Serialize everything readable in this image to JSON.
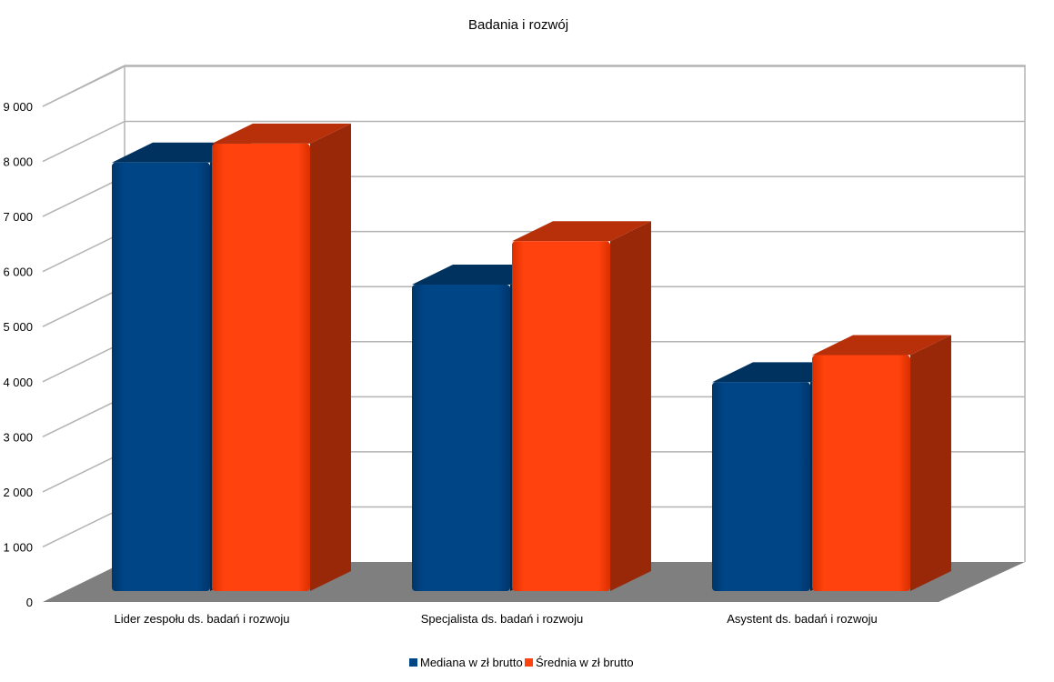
{
  "chart_data": {
    "type": "bar",
    "title": "Badania i rozwój",
    "categories": [
      "Lider zespołu ds. badań i rozwoju",
      "Specjalista ds. badań i rozwoju",
      "Asystent ds. badań i rozwoju"
    ],
    "series": [
      {
        "name": "Mediana w zł brutto",
        "values": [
          7900,
          5650,
          3850
        ],
        "color": "#004586"
      },
      {
        "name": "Średnia w zł brutto",
        "values": [
          8250,
          6450,
          4350
        ],
        "color": "#ff420e"
      }
    ],
    "yticks": [
      "0",
      "1 000",
      "2 000",
      "3 000",
      "4 000",
      "5 000",
      "6 000",
      "7 000",
      "8 000",
      "9 000"
    ],
    "ylim": [
      0,
      9000
    ],
    "grid": true,
    "legend_position": "bottom",
    "style": "3d"
  }
}
